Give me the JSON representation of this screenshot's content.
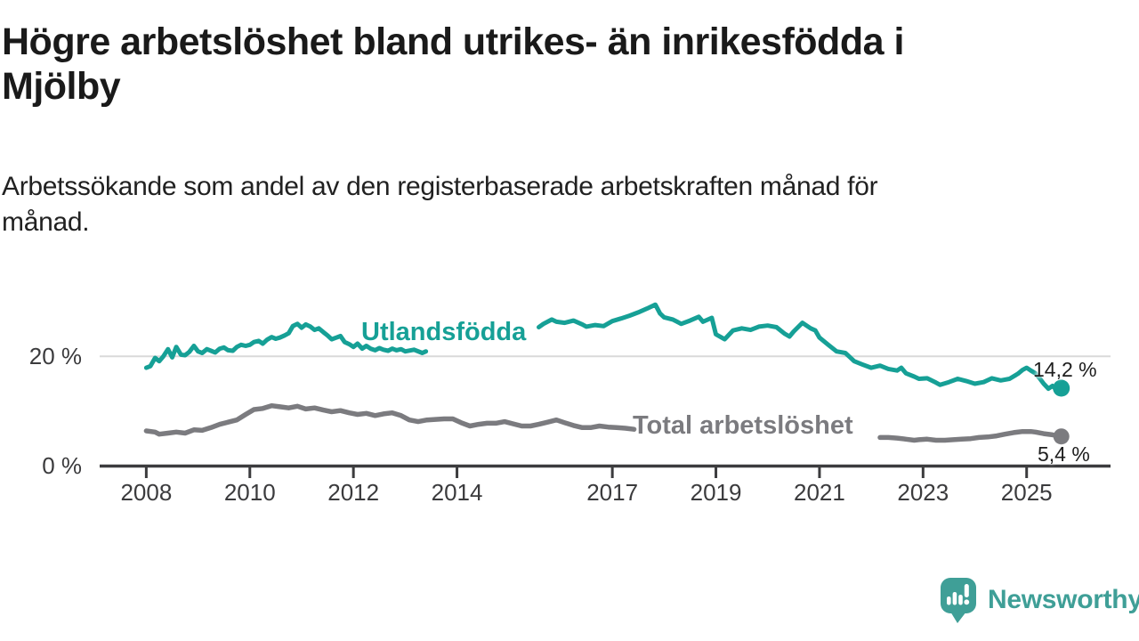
{
  "header": {
    "title": "Högre arbetslöshet bland utrikes- än inrikesfödda i\nMjölby",
    "subtitle": "Arbetssökande som andel av den registerbaserade arbetskraften månad för\nmånad."
  },
  "footer": {
    "brand": "Newsworthy",
    "brand_color": "#3f9f97",
    "logo_icon": "speech-bubble-bar-chart-icon"
  },
  "chart_data": {
    "type": "line",
    "unit": "%",
    "grid": "horizontal-single",
    "legend_position": "inline-labels-on-lines",
    "x_axis": {
      "range": [
        2007.1,
        2026.62
      ],
      "ticks": [
        2008,
        2010,
        2012,
        2014,
        2017,
        2019,
        2021,
        2023,
        2025
      ],
      "tick_labels": [
        "2008",
        "2010",
        "2012",
        "2014",
        "2017",
        "2019",
        "2021",
        "2023",
        "2025"
      ]
    },
    "y_axis": {
      "range": [
        0,
        33
      ],
      "ticks": [
        {
          "value": 20,
          "label": "20 %"
        },
        {
          "value": 0,
          "label": "0 %"
        }
      ],
      "gridline_at": 20
    },
    "series": [
      {
        "name": "Utlandsfödda",
        "color": "#16a096",
        "end_value": 14.2,
        "end_label": "14,2 %",
        "label_gap_years": [
          2013.45,
          2015.55
        ],
        "points": [
          [
            2008.0,
            17.9
          ],
          [
            2008.08,
            18.2
          ],
          [
            2008.17,
            19.7
          ],
          [
            2008.25,
            19.1
          ],
          [
            2008.33,
            20.0
          ],
          [
            2008.42,
            21.3
          ],
          [
            2008.5,
            19.8
          ],
          [
            2008.58,
            21.7
          ],
          [
            2008.67,
            20.3
          ],
          [
            2008.75,
            20.2
          ],
          [
            2008.83,
            20.8
          ],
          [
            2008.92,
            21.9
          ],
          [
            2009.0,
            20.9
          ],
          [
            2009.08,
            20.6
          ],
          [
            2009.17,
            21.3
          ],
          [
            2009.25,
            21.0
          ],
          [
            2009.33,
            20.7
          ],
          [
            2009.42,
            21.4
          ],
          [
            2009.5,
            21.6
          ],
          [
            2009.58,
            21.1
          ],
          [
            2009.67,
            21.0
          ],
          [
            2009.75,
            21.7
          ],
          [
            2009.83,
            22.1
          ],
          [
            2009.92,
            21.9
          ],
          [
            2010.0,
            22.1
          ],
          [
            2010.08,
            22.6
          ],
          [
            2010.17,
            22.8
          ],
          [
            2010.25,
            22.3
          ],
          [
            2010.33,
            23.0
          ],
          [
            2010.42,
            23.5
          ],
          [
            2010.5,
            23.2
          ],
          [
            2010.58,
            23.4
          ],
          [
            2010.67,
            23.8
          ],
          [
            2010.75,
            24.2
          ],
          [
            2010.83,
            25.5
          ],
          [
            2010.92,
            25.9
          ],
          [
            2011.0,
            25.2
          ],
          [
            2011.08,
            25.8
          ],
          [
            2011.17,
            25.4
          ],
          [
            2011.25,
            24.8
          ],
          [
            2011.33,
            25.1
          ],
          [
            2011.42,
            24.4
          ],
          [
            2011.5,
            23.8
          ],
          [
            2011.58,
            23.1
          ],
          [
            2011.67,
            23.4
          ],
          [
            2011.75,
            23.7
          ],
          [
            2011.83,
            22.6
          ],
          [
            2011.92,
            22.2
          ],
          [
            2012.0,
            21.7
          ],
          [
            2012.08,
            22.3
          ],
          [
            2012.17,
            21.4
          ],
          [
            2012.25,
            21.9
          ],
          [
            2012.33,
            21.4
          ],
          [
            2012.42,
            21.1
          ],
          [
            2012.5,
            21.5
          ],
          [
            2012.58,
            21.2
          ],
          [
            2012.67,
            21.0
          ],
          [
            2012.75,
            21.4
          ],
          [
            2012.83,
            21.1
          ],
          [
            2012.92,
            21.3
          ],
          [
            2013.0,
            20.9
          ],
          [
            2013.17,
            21.2
          ],
          [
            2013.33,
            20.6
          ],
          [
            2013.4,
            20.9
          ],
          [
            2013.5,
            20.8
          ],
          [
            2013.67,
            20.5
          ],
          [
            2013.83,
            20.8
          ],
          [
            2014.0,
            20.6
          ],
          [
            2014.17,
            20.9
          ],
          [
            2014.33,
            21.2
          ],
          [
            2014.5,
            21.5
          ],
          [
            2014.67,
            21.9
          ],
          [
            2014.83,
            22.3
          ],
          [
            2015.0,
            22.7
          ],
          [
            2015.17,
            23.3
          ],
          [
            2015.33,
            24.0
          ],
          [
            2015.5,
            24.7
          ],
          [
            2015.58,
            25.3
          ],
          [
            2015.67,
            25.9
          ],
          [
            2015.83,
            26.7
          ],
          [
            2015.92,
            26.3
          ],
          [
            2016.08,
            26.1
          ],
          [
            2016.25,
            26.5
          ],
          [
            2016.42,
            25.8
          ],
          [
            2016.5,
            25.4
          ],
          [
            2016.67,
            25.7
          ],
          [
            2016.83,
            25.5
          ],
          [
            2017.0,
            26.4
          ],
          [
            2017.17,
            26.9
          ],
          [
            2017.33,
            27.4
          ],
          [
            2017.5,
            28.0
          ],
          [
            2017.67,
            28.7
          ],
          [
            2017.83,
            29.4
          ],
          [
            2017.92,
            27.8
          ],
          [
            2018.0,
            27.1
          ],
          [
            2018.17,
            26.7
          ],
          [
            2018.33,
            25.9
          ],
          [
            2018.5,
            26.5
          ],
          [
            2018.67,
            27.2
          ],
          [
            2018.75,
            26.3
          ],
          [
            2018.92,
            27.0
          ],
          [
            2019.0,
            24.0
          ],
          [
            2019.17,
            23.1
          ],
          [
            2019.33,
            24.7
          ],
          [
            2019.5,
            25.1
          ],
          [
            2019.67,
            24.8
          ],
          [
            2019.83,
            25.4
          ],
          [
            2020.0,
            25.6
          ],
          [
            2020.17,
            25.3
          ],
          [
            2020.33,
            24.1
          ],
          [
            2020.42,
            23.6
          ],
          [
            2020.5,
            24.5
          ],
          [
            2020.67,
            26.1
          ],
          [
            2020.83,
            25.1
          ],
          [
            2020.92,
            24.7
          ],
          [
            2021.0,
            23.4
          ],
          [
            2021.17,
            22.1
          ],
          [
            2021.33,
            20.9
          ],
          [
            2021.5,
            20.6
          ],
          [
            2021.58,
            19.9
          ],
          [
            2021.67,
            19.1
          ],
          [
            2021.83,
            18.5
          ],
          [
            2022.0,
            17.9
          ],
          [
            2022.17,
            18.3
          ],
          [
            2022.33,
            17.7
          ],
          [
            2022.5,
            17.4
          ],
          [
            2022.58,
            17.9
          ],
          [
            2022.67,
            16.9
          ],
          [
            2022.83,
            16.3
          ],
          [
            2022.92,
            15.9
          ],
          [
            2023.08,
            16.0
          ],
          [
            2023.25,
            15.2
          ],
          [
            2023.33,
            14.8
          ],
          [
            2023.5,
            15.3
          ],
          [
            2023.67,
            15.9
          ],
          [
            2023.83,
            15.5
          ],
          [
            2024.0,
            15.0
          ],
          [
            2024.17,
            15.3
          ],
          [
            2024.33,
            16.0
          ],
          [
            2024.5,
            15.6
          ],
          [
            2024.67,
            15.9
          ],
          [
            2024.83,
            16.8
          ],
          [
            2024.92,
            17.5
          ],
          [
            2025.0,
            17.9
          ],
          [
            2025.08,
            17.4
          ],
          [
            2025.17,
            16.9
          ],
          [
            2025.25,
            16.0
          ],
          [
            2025.33,
            15.0
          ],
          [
            2025.42,
            14.1
          ],
          [
            2025.5,
            14.6
          ],
          [
            2025.58,
            13.9
          ],
          [
            2025.67,
            14.2
          ]
        ]
      },
      {
        "name": "Total arbetslöshet",
        "color": "#7b7b7f",
        "end_value": 5.4,
        "end_label": "5,4 %",
        "label_gap_years": [
          2017.5,
          2022.1
        ],
        "points": [
          [
            2008.0,
            6.4
          ],
          [
            2008.17,
            6.2
          ],
          [
            2008.25,
            5.8
          ],
          [
            2008.42,
            6.0
          ],
          [
            2008.58,
            6.2
          ],
          [
            2008.75,
            6.0
          ],
          [
            2008.92,
            6.6
          ],
          [
            2009.08,
            6.5
          ],
          [
            2009.25,
            7.0
          ],
          [
            2009.42,
            7.6
          ],
          [
            2009.58,
            8.0
          ],
          [
            2009.75,
            8.4
          ],
          [
            2009.92,
            9.4
          ],
          [
            2010.08,
            10.3
          ],
          [
            2010.25,
            10.5
          ],
          [
            2010.42,
            11.0
          ],
          [
            2010.58,
            10.8
          ],
          [
            2010.75,
            10.6
          ],
          [
            2010.92,
            10.9
          ],
          [
            2011.08,
            10.4
          ],
          [
            2011.25,
            10.6
          ],
          [
            2011.42,
            10.2
          ],
          [
            2011.58,
            9.9
          ],
          [
            2011.75,
            10.1
          ],
          [
            2011.92,
            9.7
          ],
          [
            2012.08,
            9.4
          ],
          [
            2012.25,
            9.6
          ],
          [
            2012.42,
            9.2
          ],
          [
            2012.58,
            9.5
          ],
          [
            2012.75,
            9.7
          ],
          [
            2012.92,
            9.2
          ],
          [
            2013.08,
            8.4
          ],
          [
            2013.25,
            8.1
          ],
          [
            2013.42,
            8.4
          ],
          [
            2013.58,
            8.5
          ],
          [
            2013.75,
            8.6
          ],
          [
            2013.92,
            8.6
          ],
          [
            2014.08,
            7.9
          ],
          [
            2014.25,
            7.3
          ],
          [
            2014.42,
            7.6
          ],
          [
            2014.58,
            7.8
          ],
          [
            2014.75,
            7.8
          ],
          [
            2014.92,
            8.1
          ],
          [
            2015.08,
            7.7
          ],
          [
            2015.25,
            7.3
          ],
          [
            2015.42,
            7.3
          ],
          [
            2015.58,
            7.6
          ],
          [
            2015.75,
            8.0
          ],
          [
            2015.92,
            8.4
          ],
          [
            2016.08,
            7.9
          ],
          [
            2016.25,
            7.4
          ],
          [
            2016.42,
            7.0
          ],
          [
            2016.58,
            7.0
          ],
          [
            2016.75,
            7.3
          ],
          [
            2016.92,
            7.1
          ],
          [
            2017.08,
            7.0
          ],
          [
            2017.25,
            6.9
          ],
          [
            2017.42,
            6.7
          ],
          [
            2017.67,
            6.6
          ],
          [
            2017.92,
            6.5
          ],
          [
            2018.17,
            6.3
          ],
          [
            2018.42,
            6.2
          ],
          [
            2018.67,
            6.1
          ],
          [
            2018.92,
            6.0
          ],
          [
            2019.17,
            5.9
          ],
          [
            2019.42,
            5.8
          ],
          [
            2019.67,
            5.8
          ],
          [
            2019.92,
            6.0
          ],
          [
            2020.17,
            6.4
          ],
          [
            2020.33,
            7.0
          ],
          [
            2020.5,
            7.2
          ],
          [
            2020.67,
            7.0
          ],
          [
            2020.92,
            6.8
          ],
          [
            2021.17,
            6.4
          ],
          [
            2021.42,
            6.0
          ],
          [
            2021.67,
            5.7
          ],
          [
            2021.92,
            5.4
          ],
          [
            2022.17,
            5.2
          ],
          [
            2022.33,
            5.2
          ],
          [
            2022.5,
            5.1
          ],
          [
            2022.67,
            4.9
          ],
          [
            2022.83,
            4.7
          ],
          [
            2022.92,
            4.8
          ],
          [
            2023.08,
            4.9
          ],
          [
            2023.25,
            4.7
          ],
          [
            2023.42,
            4.7
          ],
          [
            2023.58,
            4.8
          ],
          [
            2023.75,
            4.9
          ],
          [
            2023.92,
            5.0
          ],
          [
            2024.08,
            5.2
          ],
          [
            2024.25,
            5.3
          ],
          [
            2024.42,
            5.5
          ],
          [
            2024.58,
            5.8
          ],
          [
            2024.75,
            6.1
          ],
          [
            2024.92,
            6.3
          ],
          [
            2025.08,
            6.3
          ],
          [
            2025.17,
            6.2
          ],
          [
            2025.33,
            5.9
          ],
          [
            2025.5,
            5.7
          ],
          [
            2025.67,
            5.4
          ]
        ]
      }
    ]
  }
}
